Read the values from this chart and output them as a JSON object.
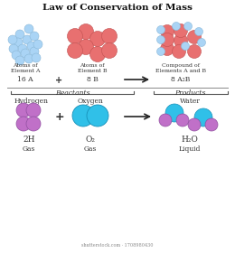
{
  "title": "Law of Conservation of Mass",
  "background_color": "#ffffff",
  "light_blue": "#aad4f5",
  "salmon_red": "#e87070",
  "purple": "#c070c8",
  "cyan_blue": "#30c0e8",
  "dark_text": "#333333",
  "arrow_color": "#222222",
  "top_section": {
    "label_A": "Atoms of\nElement A",
    "label_B": "Atoms of\nElement B",
    "label_AB": "Compound of\nElements A and B",
    "formula_A": "16 A",
    "formula_plus": "+",
    "formula_B": "8 B",
    "formula_AB": "8 A₂B"
  },
  "bottom_section": {
    "reactants_label": "Reactants",
    "products_label": "Products",
    "label_H": "Hydrogen",
    "label_O": "Oxygen",
    "label_W": "Water",
    "formula_H": "2H",
    "formula_O": "O₂",
    "formula_W": "H₂O",
    "state_H": "Gas",
    "state_O": "Gas",
    "state_W": "Liquid"
  },
  "watermark": "shutterstock.com · 1708980430"
}
